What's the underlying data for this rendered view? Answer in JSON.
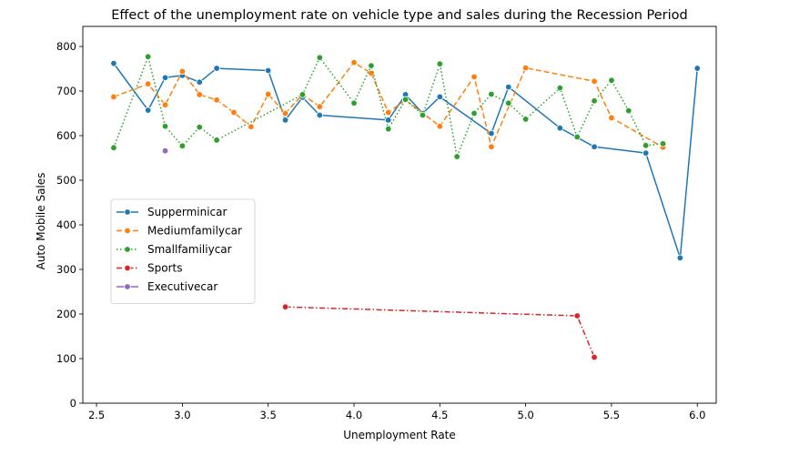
{
  "chart_data": {
    "type": "line",
    "title": "Effect of the unemployment rate on vehicle type and sales during the Recession Period",
    "xlabel": "Unemployment Rate",
    "ylabel": "Auto Mobile Sales",
    "xlim": [
      2.42,
      6.11
    ],
    "ylim": [
      0,
      845
    ],
    "xticks": [
      2.5,
      3.0,
      3.5,
      4.0,
      4.5,
      5.0,
      5.5,
      6.0
    ],
    "xtick_labels": [
      "2.5",
      "3.0",
      "3.5",
      "4.0",
      "4.5",
      "5.0",
      "5.5",
      "6.0"
    ],
    "yticks": [
      0,
      100,
      200,
      300,
      400,
      500,
      600,
      700,
      800
    ],
    "ytick_labels": [
      "0",
      "100",
      "200",
      "300",
      "400",
      "500",
      "600",
      "700",
      "800"
    ],
    "grid": false,
    "legend_position": "center-left",
    "series": [
      {
        "name": "Supperminicar",
        "color": "#1f77b4",
        "dash": "solid",
        "x": [
          2.6,
          2.8,
          2.9,
          3.0,
          3.1,
          3.2,
          3.5,
          3.6,
          3.7,
          3.8,
          4.2,
          4.3,
          4.4,
          4.5,
          4.8,
          4.9,
          5.2,
          5.4,
          5.7,
          5.9,
          6.0
        ],
        "y": [
          762,
          657,
          730,
          735,
          720,
          751,
          746,
          635,
          686,
          646,
          635,
          692,
          650,
          687,
          605,
          709,
          617,
          575,
          561,
          326,
          751
        ]
      },
      {
        "name": "Mediumfamilycar",
        "color": "#ff7f0e",
        "dash": "dashed",
        "x": [
          2.6,
          2.8,
          2.9,
          3.0,
          3.1,
          3.2,
          3.3,
          3.4,
          3.5,
          3.6,
          3.7,
          3.8,
          4.0,
          4.1,
          4.2,
          4.3,
          4.5,
          4.7,
          4.8,
          5.0,
          5.4,
          5.5,
          5.8
        ],
        "y": [
          687,
          716,
          669,
          744,
          692,
          680,
          652,
          620,
          693,
          650,
          692,
          665,
          764,
          740,
          652,
          680,
          621,
          732,
          575,
          752,
          722,
          640,
          574
        ]
      },
      {
        "name": "Smallfamiliycar",
        "color": "#2ca02c",
        "dash": "dotted",
        "x": [
          2.6,
          2.8,
          2.9,
          3.0,
          3.1,
          3.2,
          3.7,
          3.8,
          4.0,
          4.1,
          4.2,
          4.3,
          4.4,
          4.5,
          4.6,
          4.7,
          4.8,
          4.9,
          5.0,
          5.2,
          5.3,
          5.4,
          5.5,
          5.6,
          5.7,
          5.8
        ],
        "y": [
          573,
          777,
          621,
          577,
          619,
          590,
          692,
          775,
          673,
          757,
          615,
          681,
          646,
          761,
          553,
          650,
          693,
          673,
          637,
          707,
          597,
          678,
          724,
          656,
          578,
          582
        ]
      },
      {
        "name": "Sports",
        "color": "#d62728",
        "dash": "dashdot",
        "x": [
          3.6,
          5.3,
          5.4
        ],
        "y": [
          216,
          196,
          103
        ]
      },
      {
        "name": "Executivecar",
        "color": "#9467bd",
        "dash": "solid",
        "x": [
          2.9
        ],
        "y": [
          566
        ]
      }
    ]
  }
}
